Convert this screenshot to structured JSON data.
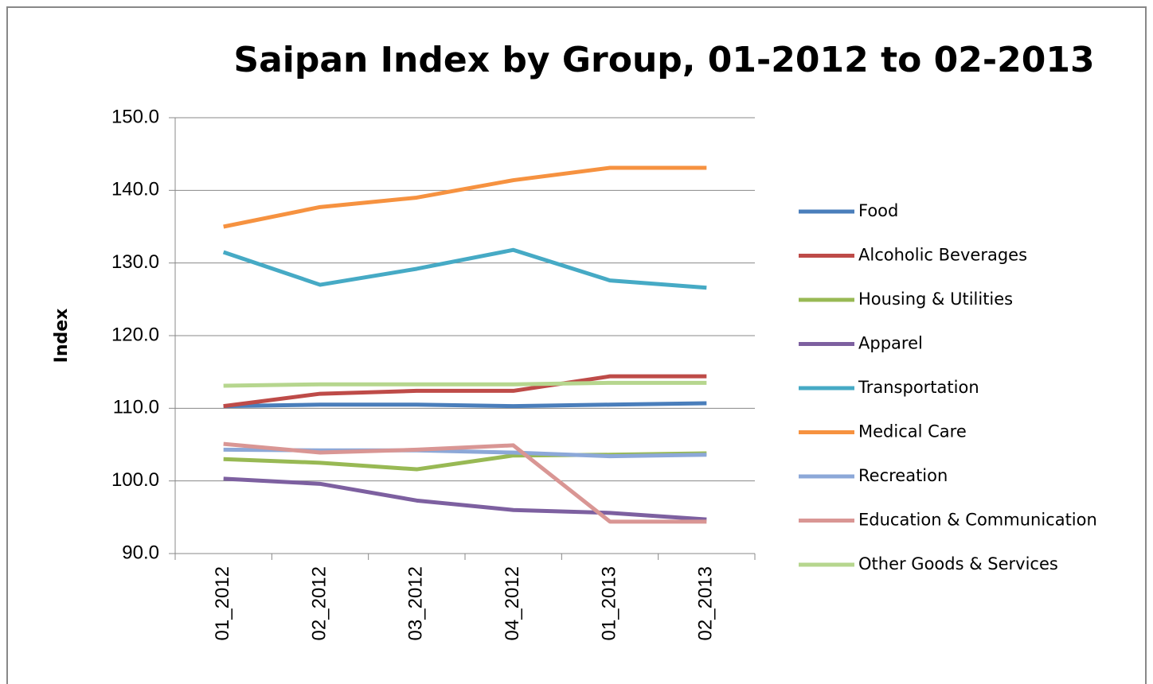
{
  "chart_data": {
    "type": "line",
    "title": "Saipan Index by Group, 01-2012 to 02-2013",
    "y_label": "Index",
    "categories": [
      "01_2012",
      "02_2012",
      "03_2012",
      "04_2012",
      "01_2013",
      "02_2013"
    ],
    "ylim": [
      90,
      150
    ],
    "yticks": [
      {
        "value": 90,
        "label": "90.0"
      },
      {
        "value": 100,
        "label": "100.0"
      },
      {
        "value": 110,
        "label": "110.0"
      },
      {
        "value": 120,
        "label": "120.0"
      },
      {
        "value": 130,
        "label": "130.0"
      },
      {
        "value": 140,
        "label": "140.0"
      },
      {
        "value": 150,
        "label": "150.0"
      }
    ],
    "grid": true,
    "legend": "right",
    "series": [
      {
        "name": "Food",
        "color": "#4a7ebb",
        "values": [
          110.3,
          110.5,
          110.5,
          110.3,
          110.5,
          110.7
        ]
      },
      {
        "name": "Alcoholic Beverages",
        "color": "#be4b48",
        "values": [
          110.3,
          112.0,
          112.4,
          112.4,
          114.4,
          114.4
        ]
      },
      {
        "name": "Housing & Utilities",
        "color": "#98b954",
        "values": [
          103.0,
          102.5,
          101.6,
          103.5,
          103.6,
          103.8
        ]
      },
      {
        "name": "Apparel",
        "color": "#7d60a0",
        "values": [
          100.3,
          99.6,
          97.3,
          96.0,
          95.6,
          94.7
        ]
      },
      {
        "name": "Transportation",
        "color": "#46aac5",
        "values": [
          131.5,
          127.0,
          129.2,
          131.8,
          127.6,
          126.6
        ]
      },
      {
        "name": "Medical Care",
        "color": "#f69240",
        "values": [
          135.0,
          137.7,
          139.0,
          141.4,
          143.1,
          143.1
        ]
      },
      {
        "name": "Recreation",
        "color": "#8ca8d8",
        "values": [
          104.3,
          104.2,
          104.2,
          103.9,
          103.4,
          103.6
        ]
      },
      {
        "name": "Education & Communication",
        "color": "#d99694",
        "values": [
          105.1,
          103.9,
          104.3,
          104.9,
          94.4,
          94.4
        ]
      },
      {
        "name": "Other Goods & Services",
        "color": "#b6d68e",
        "values": [
          113.1,
          113.3,
          113.3,
          113.3,
          113.5,
          113.5
        ]
      }
    ]
  }
}
